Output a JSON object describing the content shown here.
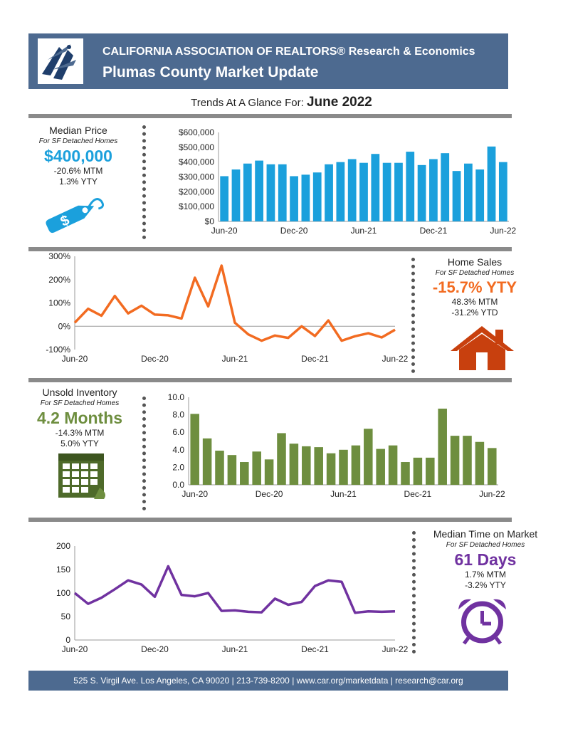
{
  "header": {
    "org": "CALIFORNIA ASSOCIATION OF REALTORS® Research & Economics",
    "title": "Plumas County Market Update"
  },
  "subtitle": {
    "prefix": "Trends At A Glance For: ",
    "date": "June 2022"
  },
  "colors": {
    "header": "#4d6a90",
    "price": "#1ba0dc",
    "sales": "#f26b21",
    "inventory": "#6e8e3f",
    "time": "#7032a0",
    "sales_icon": "#c8400e"
  },
  "icons": {
    "logo": "car-logo-icon",
    "price": "price-tag-icon",
    "sales": "house-icon",
    "inventory": "calendar-icon",
    "time": "alarm-clock-icon"
  },
  "kpis": {
    "price": {
      "title": "Median Price",
      "sub": "For SF Detached Homes",
      "value": "$400,000",
      "line1": "-20.6% MTM",
      "line2": "1.3% YTY"
    },
    "sales": {
      "title": "Home Sales",
      "sub": "For SF Detached Homes",
      "value": "-15.7% YTY",
      "line1": "48.3% MTM",
      "line2": "-31.2% YTD"
    },
    "inventory": {
      "title": "Unsold Inventory",
      "sub": "For SF Detached Homes",
      "value": "4.2 Months",
      "line1": "-14.3% MTM",
      "line2": "5.0% YTY"
    },
    "time": {
      "title": "Median Time on Market",
      "sub": "For SF Detached Homes",
      "value": "61 Days",
      "line1": "1.7% MTM",
      "line2": "-3.2% YTY"
    }
  },
  "footer": {
    "text": "525 S. Virgil Ave. Los Angeles, CA 90020 | 213-739-8200 | www.car.org/marketdata | research@car.org"
  },
  "chart_data": [
    {
      "id": "price",
      "type": "bar",
      "title": "",
      "xlabel": "",
      "ylabel": "",
      "ylim": [
        0,
        600000
      ],
      "yticks": [
        0,
        100000,
        200000,
        300000,
        400000,
        500000,
        600000
      ],
      "ytick_labels": [
        "$0",
        "$100,000",
        "$200,000",
        "$300,000",
        "$400,000",
        "$500,000",
        "$600,000"
      ],
      "xtick_labels": [
        [
          "0",
          "Jun-20"
        ],
        [
          "6",
          "Dec-20"
        ],
        [
          "12",
          "Jun-21"
        ],
        [
          "18",
          "Dec-21"
        ],
        [
          "24",
          "Jun-22"
        ]
      ],
      "values": [
        305000,
        350000,
        390000,
        410000,
        385000,
        385000,
        305000,
        315000,
        330000,
        385000,
        400000,
        420000,
        395000,
        455000,
        395000,
        395000,
        470000,
        380000,
        420000,
        460000,
        340000,
        390000,
        350000,
        505000,
        400000
      ],
      "grid": false,
      "legend": "none"
    },
    {
      "id": "sales",
      "type": "line",
      "title": "",
      "xlabel": "",
      "ylabel": "",
      "ylim": [
        -100,
        300
      ],
      "yticks": [
        -100,
        0,
        100,
        200,
        300
      ],
      "ytick_labels": [
        "-100%",
        "0%",
        "100%",
        "200%",
        "300%"
      ],
      "xtick_labels": [
        [
          "0",
          "Jun-20"
        ],
        [
          "6",
          "Dec-20"
        ],
        [
          "12",
          "Jun-21"
        ],
        [
          "18",
          "Dec-21"
        ],
        [
          "24",
          "Jun-22"
        ]
      ],
      "values": [
        15,
        75,
        45,
        130,
        55,
        88,
        50,
        47,
        33,
        208,
        85,
        260,
        15,
        -35,
        -62,
        -40,
        -50,
        0,
        -42,
        25,
        -62,
        -43,
        -30,
        -48,
        -15
      ],
      "grid": false,
      "legend": "none"
    },
    {
      "id": "inventory",
      "type": "bar",
      "title": "",
      "xlabel": "",
      "ylabel": "",
      "ylim": [
        0,
        10
      ],
      "yticks": [
        0,
        2,
        4,
        6,
        8,
        10
      ],
      "ytick_labels": [
        "0.0",
        "2.0",
        "4.0",
        "6.0",
        "8.0",
        "10.0"
      ],
      "xtick_labels": [
        [
          "0",
          "Jun-20"
        ],
        [
          "6",
          "Dec-20"
        ],
        [
          "12",
          "Jun-21"
        ],
        [
          "18",
          "Dec-21"
        ],
        [
          "24",
          "Jun-22"
        ]
      ],
      "values": [
        8.1,
        5.3,
        3.9,
        3.4,
        2.6,
        3.8,
        2.9,
        5.9,
        4.7,
        4.4,
        4.3,
        3.6,
        4.0,
        4.5,
        6.4,
        4.1,
        4.5,
        2.6,
        3.1,
        3.1,
        8.7,
        5.6,
        5.6,
        4.9,
        4.2
      ],
      "grid": false,
      "legend": "none"
    },
    {
      "id": "time",
      "type": "line",
      "title": "",
      "xlabel": "",
      "ylabel": "",
      "ylim": [
        0,
        200
      ],
      "yticks": [
        0,
        50,
        100,
        150,
        200
      ],
      "ytick_labels": [
        "0",
        "50",
        "100",
        "150",
        "200"
      ],
      "xtick_labels": [
        [
          "0",
          "Jun-20"
        ],
        [
          "6",
          "Dec-20"
        ],
        [
          "12",
          "Jun-21"
        ],
        [
          "18",
          "Dec-21"
        ],
        [
          "24",
          "Jun-22"
        ]
      ],
      "values": [
        100,
        77,
        90,
        108,
        127,
        118,
        92,
        157,
        96,
        93,
        100,
        62,
        63,
        60,
        59,
        88,
        75,
        81,
        115,
        127,
        124,
        58,
        61,
        60,
        61
      ],
      "grid": false,
      "legend": "none"
    }
  ]
}
